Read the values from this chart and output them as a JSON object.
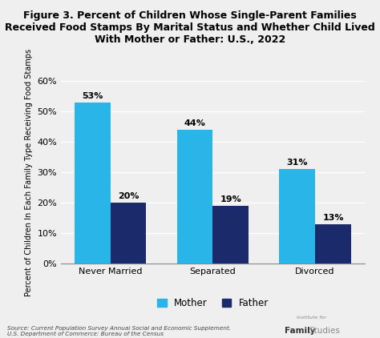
{
  "title": "Figure 3. Percent of Children Whose Single-Parent Families\nReceived Food Stamps By Marital Status and Whether Child Lived\nWith Mother or Father: U.S., 2022",
  "categories": [
    "Never Married",
    "Separated",
    "Divorced"
  ],
  "mother_values": [
    53,
    44,
    31
  ],
  "father_values": [
    20,
    19,
    13
  ],
  "mother_color": "#29B5E8",
  "father_color": "#1B2A6B",
  "ylabel": "Percent of Children In Each Family Type Receiving Food Stamps",
  "ylim": [
    0,
    60
  ],
  "yticks": [
    0,
    10,
    20,
    30,
    40,
    50,
    60
  ],
  "ytick_labels": [
    "0%",
    "10%",
    "20%",
    "30%",
    "40%",
    "50%",
    "60%"
  ],
  "background_color": "#F0EFEF",
  "source_text": "Source: Current Population Survey Annual Social and Economic Supplement.\nU.S. Department of Commerce: Bureau of the Census",
  "legend_mother": "Mother",
  "legend_father": "Father",
  "bar_width": 0.35,
  "title_fontsize": 9.0,
  "ylabel_fontsize": 7.0,
  "tick_fontsize": 8.0,
  "label_fontsize": 8.0
}
